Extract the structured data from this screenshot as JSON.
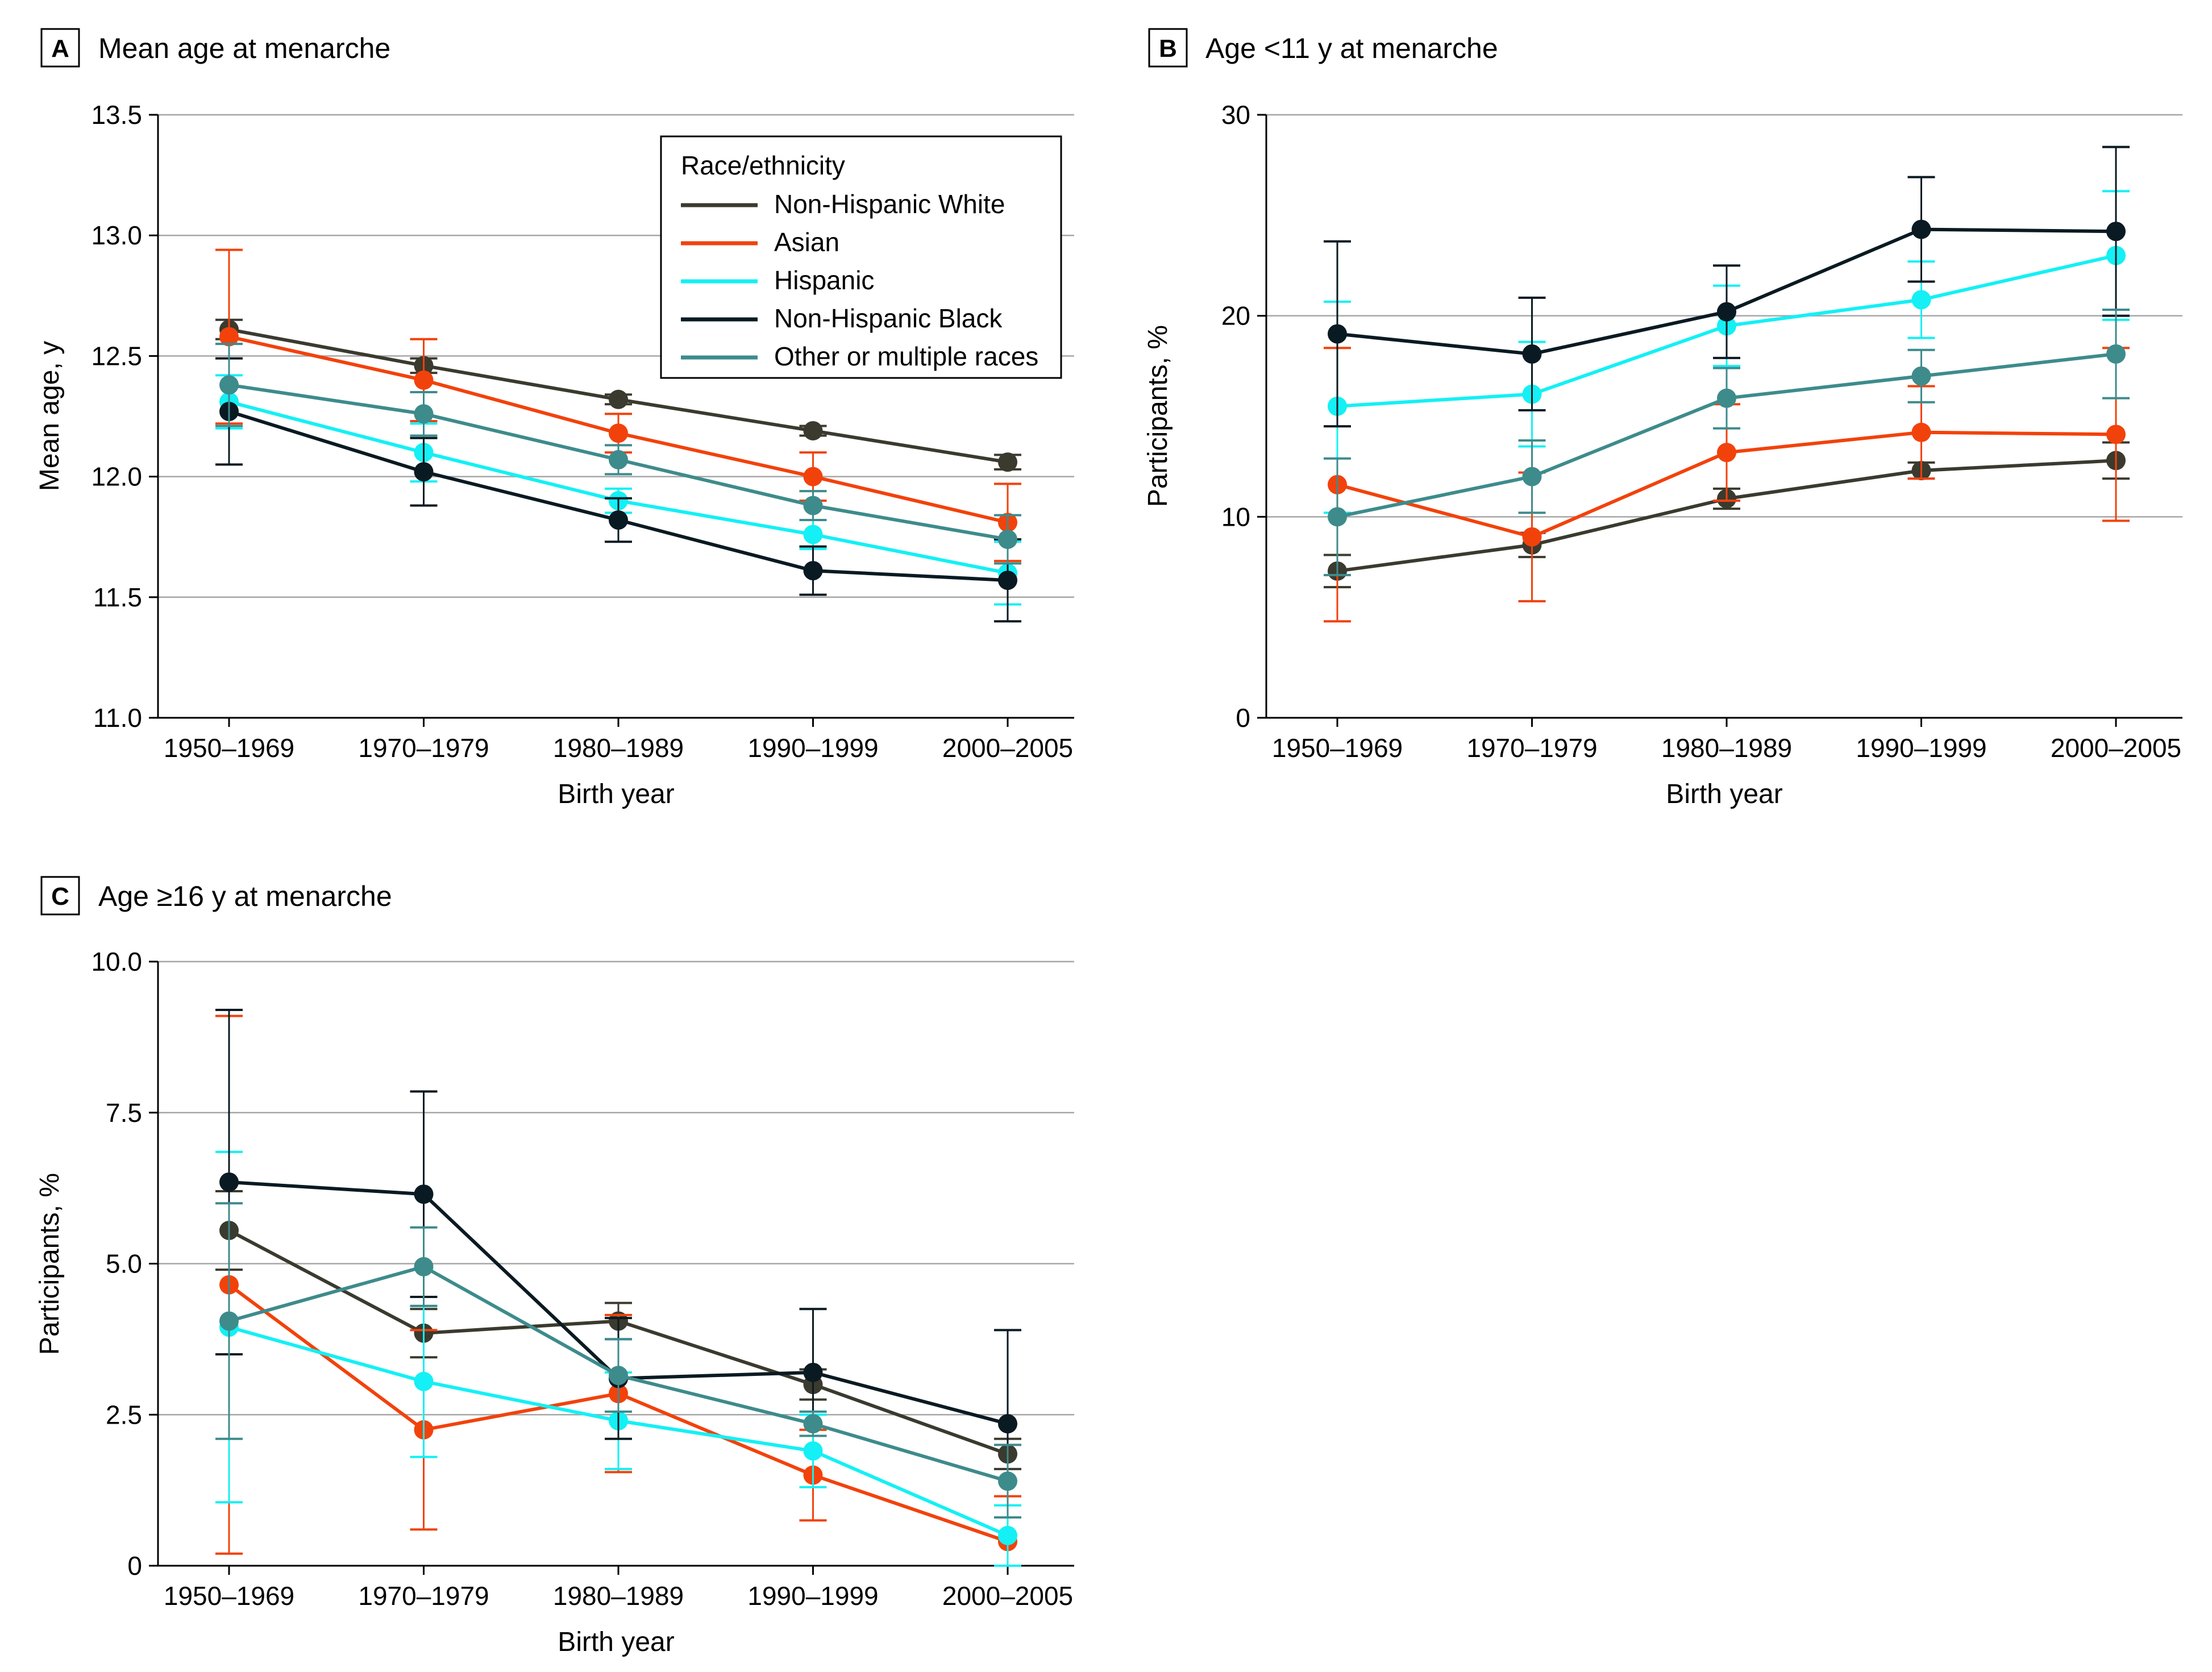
{
  "colors": {
    "Non-Hispanic White": "#3b3a2e",
    "Asian": "#f2420c",
    "Hispanic": "#14f0f5",
    "Non-Hispanic Black": "#0a1a22",
    "Other or multiple races": "#3e8b8c"
  },
  "legend": {
    "title": "Race/ethnicity",
    "entries": [
      "Non-Hispanic White",
      "Asian",
      "Hispanic",
      "Non-Hispanic Black",
      "Other or multiple races"
    ]
  },
  "chart_data": [
    {
      "panel": "A",
      "title": "Mean age at menarche",
      "type": "line",
      "xlabel": "Birth year",
      "ylabel": "Mean age, y",
      "categories": [
        "1950–1969",
        "1970–1979",
        "1980–1989",
        "1990–1999",
        "2000–2005"
      ],
      "ylim": [
        11.0,
        13.5
      ],
      "yticks": [
        11.0,
        11.5,
        12.0,
        12.5,
        13.0,
        13.5
      ],
      "ytick_labels": [
        "11.0",
        "11.5",
        "12.0",
        "12.5",
        "13.0",
        "13.5"
      ],
      "legend_position": "top-right",
      "series": [
        {
          "name": "Non-Hispanic White",
          "values": [
            12.61,
            12.46,
            12.32,
            12.19,
            12.06
          ],
          "lower": [
            12.57,
            12.43,
            12.3,
            12.17,
            12.03
          ],
          "upper": [
            12.65,
            12.49,
            12.34,
            12.21,
            12.09
          ]
        },
        {
          "name": "Asian",
          "values": [
            12.58,
            12.4,
            12.18,
            12.0,
            11.81
          ],
          "lower": [
            12.22,
            12.23,
            12.1,
            11.9,
            11.65
          ],
          "upper": [
            12.94,
            12.57,
            12.26,
            12.1,
            11.97
          ]
        },
        {
          "name": "Hispanic",
          "values": [
            12.31,
            12.1,
            11.9,
            11.76,
            11.6
          ],
          "lower": [
            12.2,
            11.98,
            11.85,
            11.7,
            11.47
          ],
          "upper": [
            12.42,
            12.22,
            11.95,
            11.82,
            11.73
          ]
        },
        {
          "name": "Non-Hispanic Black",
          "values": [
            12.27,
            12.02,
            11.82,
            11.61,
            11.57
          ],
          "lower": [
            12.05,
            11.88,
            11.73,
            11.51,
            11.4
          ],
          "upper": [
            12.49,
            12.16,
            11.91,
            11.71,
            11.74
          ]
        },
        {
          "name": "Other or multiple races",
          "values": [
            12.38,
            12.26,
            12.07,
            11.88,
            11.74
          ],
          "lower": [
            12.21,
            12.17,
            12.01,
            11.82,
            11.64
          ],
          "upper": [
            12.55,
            12.35,
            12.13,
            11.94,
            11.84
          ]
        }
      ]
    },
    {
      "panel": "B",
      "title": "Age <11 y at menarche",
      "type": "line",
      "xlabel": "Birth year",
      "ylabel": "Participants, %",
      "categories": [
        "1950–1969",
        "1970–1979",
        "1980–1989",
        "1990–1999",
        "2000–2005"
      ],
      "ylim": [
        0,
        30
      ],
      "yticks": [
        0,
        10,
        20,
        30
      ],
      "ytick_labels": [
        "0",
        "10",
        "20",
        "30"
      ],
      "series": [
        {
          "name": "Non-Hispanic White",
          "values": [
            7.3,
            8.6,
            10.9,
            12.3,
            12.8
          ],
          "lower": [
            6.5,
            8.0,
            10.4,
            11.9,
            11.9
          ],
          "upper": [
            8.1,
            9.2,
            11.4,
            12.7,
            13.7
          ]
        },
        {
          "name": "Asian",
          "values": [
            11.6,
            9.0,
            13.2,
            14.2,
            14.1
          ],
          "lower": [
            4.8,
            5.8,
            10.8,
            11.9,
            9.8
          ],
          "upper": [
            18.4,
            12.2,
            15.6,
            16.5,
            18.4
          ]
        },
        {
          "name": "Hispanic",
          "values": [
            15.5,
            16.1,
            19.5,
            20.8,
            23.0
          ],
          "lower": [
            10.2,
            13.5,
            17.5,
            18.9,
            19.8
          ],
          "upper": [
            20.7,
            18.7,
            21.5,
            22.7,
            26.2
          ]
        },
        {
          "name": "Non-Hispanic Black",
          "values": [
            19.1,
            18.1,
            20.2,
            24.3,
            24.2
          ],
          "lower": [
            14.5,
            15.3,
            17.9,
            21.7,
            20.0
          ],
          "upper": [
            23.7,
            20.9,
            22.5,
            26.9,
            28.4
          ]
        },
        {
          "name": "Other or multiple races",
          "values": [
            10.0,
            12.0,
            15.9,
            17.0,
            18.1
          ],
          "lower": [
            7.1,
            10.2,
            14.4,
            15.7,
            15.9
          ],
          "upper": [
            12.9,
            13.8,
            17.4,
            18.3,
            20.3
          ]
        }
      ]
    },
    {
      "panel": "C",
      "title": "Age ≥16 y at menarche",
      "type": "line",
      "xlabel": "Birth year",
      "ylabel": "Participants, %",
      "categories": [
        "1950–1969",
        "1970–1979",
        "1980–1989",
        "1990–1999",
        "2000–2005"
      ],
      "ylim": [
        0,
        10
      ],
      "yticks": [
        0,
        2.5,
        5.0,
        7.5,
        10.0
      ],
      "ytick_labels": [
        "0",
        "2.5",
        "5.0",
        "7.5",
        "10.0"
      ],
      "series": [
        {
          "name": "Non-Hispanic White",
          "values": [
            5.55,
            3.85,
            4.05,
            3.0,
            1.85
          ],
          "lower": [
            4.9,
            3.45,
            3.75,
            2.75,
            1.6
          ],
          "upper": [
            6.2,
            4.25,
            4.35,
            3.25,
            2.1
          ]
        },
        {
          "name": "Asian",
          "values": [
            4.65,
            2.25,
            2.85,
            1.5,
            0.4
          ],
          "lower": [
            0.2,
            0.6,
            1.55,
            0.75,
            0.0
          ],
          "upper": [
            9.1,
            3.9,
            4.15,
            2.25,
            1.15
          ]
        },
        {
          "name": "Hispanic",
          "values": [
            3.95,
            3.05,
            2.4,
            1.9,
            0.5
          ],
          "lower": [
            1.05,
            1.8,
            1.6,
            1.3,
            0.0
          ],
          "upper": [
            6.85,
            4.3,
            3.2,
            2.5,
            1.0
          ]
        },
        {
          "name": "Non-Hispanic Black",
          "values": [
            6.35,
            6.15,
            3.1,
            3.2,
            2.35
          ],
          "lower": [
            3.5,
            4.45,
            2.1,
            2.15,
            0.8
          ],
          "upper": [
            9.2,
            7.85,
            4.1,
            4.25,
            3.9
          ]
        },
        {
          "name": "Other or multiple races",
          "values": [
            4.05,
            4.95,
            3.15,
            2.35,
            1.4
          ],
          "lower": [
            2.1,
            4.3,
            2.55,
            2.15,
            0.8
          ],
          "upper": [
            6.0,
            5.6,
            3.75,
            2.55,
            2.0
          ]
        }
      ]
    }
  ]
}
